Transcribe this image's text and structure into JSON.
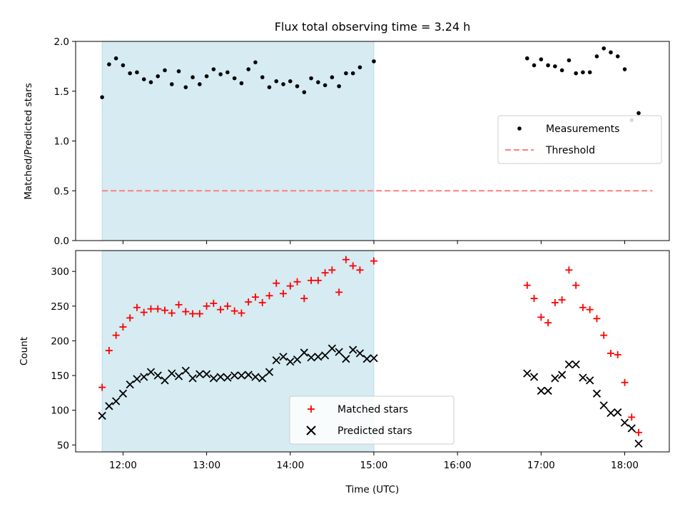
{
  "figure": {
    "title": "Flux total observing time = 3.24 h"
  },
  "colors": {
    "shade": "#add8e6",
    "matched": "#ff0000",
    "predicted": "#000000",
    "measurement": "#000000",
    "threshold": "#ff7f7f"
  },
  "chart_data": [
    {
      "type": "scatter",
      "ylabel": "Matched/Predicted stars",
      "xlabel": "",
      "ylim": [
        0,
        2.0
      ],
      "xlim": [
        "11:26",
        "18:32"
      ],
      "yticks": [
        "0.0",
        "0.5",
        "1.0",
        "1.5",
        "2.0"
      ],
      "shaded_interval": [
        "11:45",
        "15:00"
      ],
      "legend": {
        "placement": "center-right",
        "entries": [
          "Measurements",
          "Threshold"
        ]
      },
      "series": [
        {
          "name": "Measurements",
          "marker": "dot",
          "points": [
            [
              "11:45",
              1.44
            ],
            [
              "11:50",
              1.77
            ],
            [
              "11:55",
              1.83
            ],
            [
              "12:00",
              1.76
            ],
            [
              "12:05",
              1.68
            ],
            [
              "12:10",
              1.69
            ],
            [
              "12:15",
              1.62
            ],
            [
              "12:20",
              1.59
            ],
            [
              "12:25",
              1.65
            ],
            [
              "12:30",
              1.71
            ],
            [
              "12:35",
              1.57
            ],
            [
              "12:40",
              1.7
            ],
            [
              "12:45",
              1.54
            ],
            [
              "12:50",
              1.64
            ],
            [
              "12:55",
              1.57
            ],
            [
              "13:00",
              1.65
            ],
            [
              "13:05",
              1.72
            ],
            [
              "13:10",
              1.67
            ],
            [
              "13:15",
              1.69
            ],
            [
              "13:20",
              1.63
            ],
            [
              "13:25",
              1.58
            ],
            [
              "13:30",
              1.72
            ],
            [
              "13:35",
              1.79
            ],
            [
              "13:40",
              1.64
            ],
            [
              "13:45",
              1.54
            ],
            [
              "13:50",
              1.6
            ],
            [
              "13:55",
              1.57
            ],
            [
              "14:00",
              1.6
            ],
            [
              "14:05",
              1.55
            ],
            [
              "14:10",
              1.49
            ],
            [
              "14:15",
              1.63
            ],
            [
              "14:20",
              1.59
            ],
            [
              "14:25",
              1.56
            ],
            [
              "14:30",
              1.64
            ],
            [
              "14:35",
              1.55
            ],
            [
              "14:40",
              1.68
            ],
            [
              "14:45",
              1.68
            ],
            [
              "14:50",
              1.74
            ],
            [
              "15:00",
              1.8
            ],
            [
              "16:50",
              1.83
            ],
            [
              "16:55",
              1.76
            ],
            [
              "17:00",
              1.82
            ],
            [
              "17:05",
              1.76
            ],
            [
              "17:10",
              1.75
            ],
            [
              "17:15",
              1.71
            ],
            [
              "17:20",
              1.81
            ],
            [
              "17:25",
              1.68
            ],
            [
              "17:30",
              1.69
            ],
            [
              "17:35",
              1.69
            ],
            [
              "17:40",
              1.85
            ],
            [
              "17:45",
              1.93
            ],
            [
              "17:50",
              1.89
            ],
            [
              "17:55",
              1.85
            ],
            [
              "18:00",
              1.72
            ],
            [
              "18:05",
              1.21
            ],
            [
              "18:10",
              1.28
            ]
          ]
        },
        {
          "name": "Threshold",
          "marker": "dashed-line",
          "points": [
            [
              "11:45",
              0.5
            ],
            [
              "18:20",
              0.5
            ]
          ]
        }
      ]
    },
    {
      "type": "scatter",
      "ylabel": "Count",
      "xlabel": "Time (UTC)",
      "ylim": [
        40,
        330
      ],
      "xlim": [
        "11:26",
        "18:32"
      ],
      "yticks": [
        "50",
        "100",
        "150",
        "200",
        "250",
        "300"
      ],
      "xticks": [
        "12:00",
        "13:00",
        "14:00",
        "15:00",
        "16:00",
        "17:00",
        "18:00"
      ],
      "shaded_interval": [
        "11:45",
        "15:00"
      ],
      "legend": {
        "placement": "bottom-center",
        "entries": [
          "Matched stars",
          "Predicted stars"
        ]
      },
      "series": [
        {
          "name": "Matched stars",
          "marker": "plus",
          "points": [
            [
              "11:45",
              133
            ],
            [
              "11:50",
              186
            ],
            [
              "11:55",
              208
            ],
            [
              "12:00",
              220
            ],
            [
              "12:05",
              233
            ],
            [
              "12:10",
              248
            ],
            [
              "12:15",
              241
            ],
            [
              "12:20",
              246
            ],
            [
              "12:25",
              246
            ],
            [
              "12:30",
              244
            ],
            [
              "12:35",
              240
            ],
            [
              "12:40",
              252
            ],
            [
              "12:45",
              242
            ],
            [
              "12:50",
              239
            ],
            [
              "12:55",
              239
            ],
            [
              "13:00",
              250
            ],
            [
              "13:05",
              254
            ],
            [
              "13:10",
              245
            ],
            [
              "13:15",
              250
            ],
            [
              "13:20",
              243
            ],
            [
              "13:25",
              240
            ],
            [
              "13:30",
              256
            ],
            [
              "13:35",
              263
            ],
            [
              "13:40",
              255
            ],
            [
              "13:45",
              265
            ],
            [
              "13:50",
              283
            ],
            [
              "13:55",
              268
            ],
            [
              "14:00",
              279
            ],
            [
              "14:05",
              285
            ],
            [
              "14:10",
              261
            ],
            [
              "14:15",
              287
            ],
            [
              "14:20",
              287
            ],
            [
              "14:25",
              298
            ],
            [
              "14:30",
              302
            ],
            [
              "14:35",
              270
            ],
            [
              "14:40",
              317
            ],
            [
              "14:45",
              308
            ],
            [
              "14:50",
              302
            ],
            [
              "15:00",
              315
            ],
            [
              "16:50",
              280
            ],
            [
              "16:55",
              261
            ],
            [
              "17:00",
              234
            ],
            [
              "17:05",
              226
            ],
            [
              "17:10",
              255
            ],
            [
              "17:15",
              259
            ],
            [
              "17:20",
              302
            ],
            [
              "17:25",
              280
            ],
            [
              "17:30",
              248
            ],
            [
              "17:35",
              245
            ],
            [
              "17:40",
              232
            ],
            [
              "17:45",
              208
            ],
            [
              "17:50",
              182
            ],
            [
              "17:55",
              180
            ],
            [
              "18:00",
              140
            ],
            [
              "18:05",
              90
            ],
            [
              "18:10",
              68
            ]
          ]
        },
        {
          "name": "Predicted stars",
          "marker": "x",
          "points": [
            [
              "11:45",
              92
            ],
            [
              "11:50",
              106
            ],
            [
              "11:55",
              113
            ],
            [
              "12:00",
              124
            ],
            [
              "12:05",
              137
            ],
            [
              "12:10",
              145
            ],
            [
              "12:15",
              148
            ],
            [
              "12:20",
              155
            ],
            [
              "12:25",
              150
            ],
            [
              "12:30",
              143
            ],
            [
              "12:35",
              153
            ],
            [
              "12:40",
              149
            ],
            [
              "12:45",
              157
            ],
            [
              "12:50",
              146
            ],
            [
              "12:55",
              152
            ],
            [
              "13:00",
              152
            ],
            [
              "13:05",
              146
            ],
            [
              "13:10",
              148
            ],
            [
              "13:15",
              147
            ],
            [
              "13:20",
              150
            ],
            [
              "13:25",
              150
            ],
            [
              "13:30",
              151
            ],
            [
              "13:35",
              148
            ],
            [
              "13:40",
              146
            ],
            [
              "13:45",
              155
            ],
            [
              "13:50",
              172
            ],
            [
              "13:55",
              177
            ],
            [
              "14:00",
              170
            ],
            [
              "14:05",
              173
            ],
            [
              "14:10",
              183
            ],
            [
              "14:15",
              176
            ],
            [
              "14:20",
              177
            ],
            [
              "14:25",
              179
            ],
            [
              "14:30",
              189
            ],
            [
              "14:35",
              184
            ],
            [
              "14:40",
              174
            ],
            [
              "14:45",
              187
            ],
            [
              "14:50",
              182
            ],
            [
              "14:55",
              174
            ],
            [
              "15:00",
              175
            ],
            [
              "16:50",
              153
            ],
            [
              "16:55",
              148
            ],
            [
              "17:00",
              128
            ],
            [
              "17:05",
              128
            ],
            [
              "17:10",
              146
            ],
            [
              "17:15",
              151
            ],
            [
              "17:20",
              166
            ],
            [
              "17:25",
              166
            ],
            [
              "17:30",
              147
            ],
            [
              "17:35",
              143
            ],
            [
              "17:40",
              124
            ],
            [
              "17:45",
              107
            ],
            [
              "17:50",
              96
            ],
            [
              "17:55",
              97
            ],
            [
              "18:00",
              82
            ],
            [
              "18:05",
              74
            ],
            [
              "18:10",
              52
            ]
          ]
        }
      ]
    }
  ]
}
